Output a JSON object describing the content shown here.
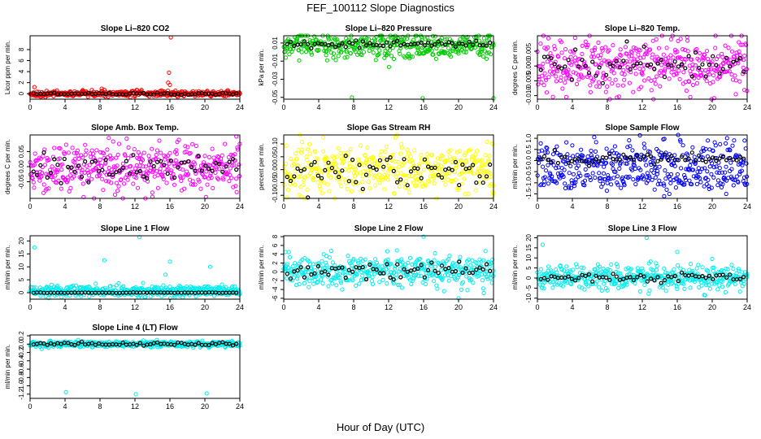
{
  "figure": {
    "title": "FEF_100112  Slope Diagnostics",
    "xlabel": "Hour of Day (UTC)"
  },
  "chart_data": [
    {
      "type": "scatter",
      "title": "Slope Li–820 CO2",
      "ylabel": "Licor ppm per min.",
      "color": "#ff0000",
      "xlim": [
        0,
        24
      ],
      "xticks": [
        0,
        4,
        8,
        12,
        16,
        20,
        24
      ],
      "ylim": [
        -1,
        10.5
      ],
      "yticks": [
        0,
        2,
        4,
        6,
        8
      ],
      "ytick_labels": [
        "0",
        "2",
        "4",
        "6",
        "8"
      ],
      "base": 0,
      "spread": 0.25,
      "model_base": 0,
      "model_spread": 0.1,
      "outliers": [
        {
          "x": 16.1,
          "y": 10.2
        },
        {
          "x": 15.9,
          "y": 3.8
        },
        {
          "x": 16.0,
          "y": 1.6
        },
        {
          "x": 15.8,
          "y": 2.0
        },
        {
          "x": 0.5,
          "y": 1.2
        },
        {
          "x": 8.2,
          "y": 0.9
        },
        {
          "x": 8.5,
          "y": 0.7
        },
        {
          "x": 1.0,
          "y": -0.4
        }
      ]
    },
    {
      "type": "scatter",
      "title": "Slope Li–820 Pressure",
      "ylabel": "kPa per min.",
      "color": "#00cc00",
      "xlim": [
        0,
        24
      ],
      "xticks": [
        0,
        4,
        8,
        12,
        16,
        20,
        24
      ],
      "ylim": [
        -0.052,
        0.018
      ],
      "yticks": [
        0.01,
        -0.01,
        -0.03,
        -0.05
      ],
      "ytick_labels": [
        "0.01",
        "-0.01",
        "-0.03",
        "-0.05"
      ],
      "base": 0.007,
      "spread": 0.007,
      "model_base": 0.009,
      "model_spread": 0.002,
      "outliers": [
        {
          "x": 7.8,
          "y": -0.05
        },
        {
          "x": 15.9,
          "y": -0.051
        },
        {
          "x": 24.0,
          "y": -0.051
        },
        {
          "x": 9.5,
          "y": 0.015
        },
        {
          "x": 23.5,
          "y": 0.014
        }
      ]
    },
    {
      "type": "scatter",
      "title": "Slope Li–820 Temp.",
      "ylabel": "degrees C per min.",
      "color": "#ff00ff",
      "xlim": [
        0,
        24
      ],
      "xticks": [
        0,
        4,
        8,
        12,
        16,
        20,
        24
      ],
      "ylim": [
        -0.0112,
        0.0102
      ],
      "yticks": [
        -0.01,
        -0.005,
        0.0,
        0.005
      ],
      "ytick_labels": [
        "-0.010",
        "-0.005",
        "0.000",
        "0.005"
      ],
      "base": 0.0,
      "spread": 0.0048,
      "model_base": 0.0,
      "model_spread": 0.0028,
      "outliers": [
        {
          "x": 3.3,
          "y": -0.0105
        },
        {
          "x": 17.5,
          "y": -0.0105
        },
        {
          "x": 13.6,
          "y": 0.009
        },
        {
          "x": 23.8,
          "y": 0.0075
        }
      ]
    },
    {
      "type": "scatter",
      "title": "Slope Amb. Box Temp.",
      "ylabel": "degrees C per min.",
      "color": "#ff00ff",
      "xlim": [
        0,
        24
      ],
      "xticks": [
        0,
        4,
        8,
        12,
        16,
        20,
        24
      ],
      "ylim": [
        -0.105,
        0.105
      ],
      "yticks": [
        -0.05,
        0.0,
        0.05
      ],
      "ytick_labels": [
        "-0.05",
        "0.00",
        "0.05"
      ],
      "base": 0.0,
      "spread": 0.038,
      "model_base": 0.0,
      "model_spread": 0.022,
      "outliers": [
        {
          "x": 14.0,
          "y": -0.1
        },
        {
          "x": 23.6,
          "y": 0.1
        },
        {
          "x": 9.0,
          "y": 0.095
        }
      ]
    },
    {
      "type": "scatter",
      "title": "Slope Gas Stream RH",
      "ylabel": "percent per min.",
      "color": "#ffff00",
      "xlim": [
        0,
        24
      ],
      "xticks": [
        0,
        4,
        8,
        12,
        16,
        20,
        24
      ],
      "ylim": [
        -0.112,
        0.135
      ],
      "yticks": [
        -0.1,
        -0.05,
        0.0,
        0.05,
        0.1
      ],
      "ytick_labels": [
        "-0.10",
        "-0.05",
        "0.00",
        "0.05",
        "0.10"
      ],
      "base": 0.0,
      "spread": 0.05,
      "model_base": 0.0,
      "model_spread": 0.032,
      "outliers": [
        {
          "x": 4.5,
          "y": 0.125
        },
        {
          "x": 2.0,
          "y": -0.105
        },
        {
          "x": 23.9,
          "y": -0.1
        },
        {
          "x": 23.9,
          "y": 0.1
        }
      ]
    },
    {
      "type": "scatter",
      "title": "Slope Sample Flow",
      "ylabel": "ml/min per min.",
      "color": "#0000ff",
      "xlim": [
        0,
        24
      ],
      "xticks": [
        0,
        4,
        8,
        12,
        16,
        20,
        24
      ],
      "ylim": [
        -1.7,
        1.15
      ],
      "yticks": [
        -1.5,
        -1.0,
        -0.5,
        0.0,
        0.5,
        1.0
      ],
      "ytick_labels": [
        "-1.5",
        "-1.0",
        "-0.5",
        "0.0",
        "0.5",
        "1.0"
      ],
      "base": 0.0,
      "spread": 0.45,
      "model_base": 0.05,
      "model_spread": 0.12,
      "outliers": [
        {
          "x": 6.5,
          "y": 1.05
        },
        {
          "x": 14.5,
          "y": -1.6
        },
        {
          "x": 15.1,
          "y": -1.5
        },
        {
          "x": 21.6,
          "y": -1.5
        },
        {
          "x": 23.7,
          "y": 0.9
        },
        {
          "x": 19.5,
          "y": 0.9
        }
      ]
    },
    {
      "type": "scatter",
      "title": "Slope Line 1 Flow",
      "ylabel": "ml/min per min.",
      "color": "#00eeee",
      "xlim": [
        0,
        24
      ],
      "xticks": [
        0,
        4,
        8,
        12,
        16,
        20,
        24
      ],
      "ylim": [
        -2.5,
        22
      ],
      "yticks": [
        0,
        5,
        10,
        15,
        20
      ],
      "ytick_labels": [
        "0",
        "5",
        "10",
        "15",
        "20"
      ],
      "base": 0.6,
      "spread": 1.1,
      "model_base": 0.0,
      "model_spread": 0.05,
      "outliers": [
        {
          "x": 0.5,
          "y": 17.5
        },
        {
          "x": 12.5,
          "y": 21.5
        },
        {
          "x": 8.5,
          "y": 12.5
        },
        {
          "x": 16.0,
          "y": 12.0
        },
        {
          "x": 20.6,
          "y": 10.0
        },
        {
          "x": 15.5,
          "y": 7.0
        }
      ]
    },
    {
      "type": "scatter",
      "title": "Slope Line 2 Flow",
      "ylabel": "ml/min per min.",
      "color": "#00eeee",
      "xlim": [
        0,
        24
      ],
      "xticks": [
        0,
        4,
        8,
        12,
        16,
        20,
        24
      ],
      "ylim": [
        -6.2,
        8.2
      ],
      "yticks": [
        -6,
        -4,
        -2,
        0,
        2,
        4,
        6,
        8
      ],
      "ytick_labels": [
        "-6",
        "-4",
        "-2",
        "0",
        "2",
        "4",
        "6",
        "8"
      ],
      "base": 0.2,
      "spread": 1.7,
      "model_base": 0.3,
      "model_spread": 1.0,
      "outliers": [
        {
          "x": 16.0,
          "y": 8.0
        },
        {
          "x": 20.0,
          "y": -6.0
        },
        {
          "x": 0.2,
          "y": 4.5
        }
      ]
    },
    {
      "type": "scatter",
      "title": "Slope Line 3 Flow",
      "ylabel": "ml/min per min.",
      "color": "#00eeee",
      "xlim": [
        0,
        24
      ],
      "xticks": [
        0,
        4,
        8,
        12,
        16,
        20,
        24
      ],
      "ylim": [
        -10.5,
        21
      ],
      "yticks": [
        -10,
        -5,
        0,
        5,
        10,
        15,
        20
      ],
      "ytick_labels": [
        "-10",
        "-5",
        "0",
        "5",
        "10",
        "15",
        "20"
      ],
      "base": 0.3,
      "spread": 3.0,
      "model_base": 0.2,
      "model_spread": 1.3,
      "outliers": [
        {
          "x": 0.6,
          "y": 16.5
        },
        {
          "x": 12.5,
          "y": 20.0
        },
        {
          "x": 16.0,
          "y": 13.0
        },
        {
          "x": 20.0,
          "y": 9.5
        }
      ]
    },
    {
      "type": "scatter",
      "title": "Slope Line 4 (LT) Flow",
      "ylabel": "ml/min per min.",
      "color": "#00eeee",
      "xlim": [
        0,
        24
      ],
      "xticks": [
        0,
        4,
        8,
        12,
        16,
        20,
        24
      ],
      "ylim": [
        -1.3,
        0.22
      ],
      "yticks": [
        -1.2,
        -1.0,
        -0.8,
        -0.6,
        -0.4,
        -0.2,
        0.0,
        0.2
      ],
      "ytick_labels": [
        "-1.2",
        "-1.0",
        "-0.8",
        "-0.6",
        "-0.4",
        "-0.2",
        "0.0",
        "0.2"
      ],
      "base": 0.0,
      "spread": 0.035,
      "model_base": 0.0,
      "model_spread": 0.02,
      "outliers": [
        {
          "x": 4.1,
          "y": -1.15
        },
        {
          "x": 12.1,
          "y": -1.2
        },
        {
          "x": 20.2,
          "y": -1.18
        },
        {
          "x": 5.5,
          "y": 0.1
        },
        {
          "x": 14.5,
          "y": 0.1
        }
      ]
    }
  ]
}
